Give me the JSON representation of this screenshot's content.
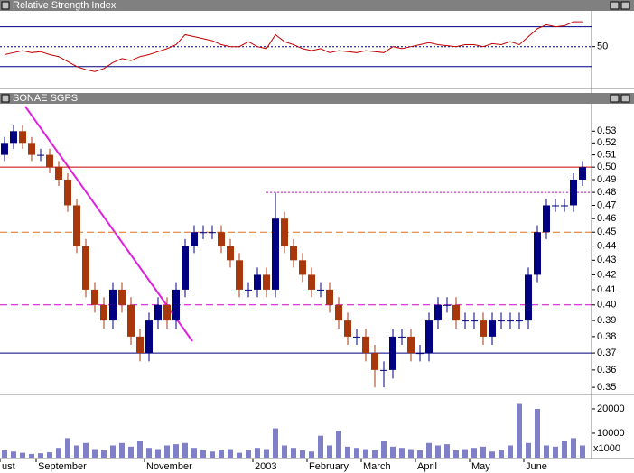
{
  "chart_data": [
    {
      "type": "line",
      "title": "Relative Strength Index",
      "color": "#c00000",
      "values": [
        42,
        44,
        46,
        44,
        45,
        42,
        40,
        35,
        30,
        27,
        25,
        28,
        34,
        38,
        36,
        40,
        42,
        45,
        48,
        52,
        62,
        60,
        58,
        56,
        52,
        50,
        50,
        55,
        50,
        48,
        62,
        55,
        52,
        48,
        46,
        48,
        44,
        46,
        45,
        44,
        46,
        45,
        44,
        50,
        48,
        50,
        52,
        54,
        52,
        51,
        50,
        52,
        52,
        50,
        53,
        52,
        55,
        52,
        60,
        68,
        72,
        70,
        71,
        75,
        75
      ],
      "ylim": [
        8,
        86
      ],
      "yticks": [
        50
      ],
      "levels": [
        {
          "value": 70,
          "color": "#000080",
          "style": "solid"
        },
        {
          "value": 50,
          "color": "#000080",
          "style": "dotted"
        },
        {
          "value": 30,
          "color": "#000080",
          "style": "solid"
        }
      ]
    },
    {
      "type": "candlestick",
      "title": "SONAE SGPS",
      "up_color": "#000080",
      "down_color": "#a8380c",
      "log_scale": true,
      "open": [
        0.51,
        0.52,
        0.53,
        0.52,
        0.51,
        0.51,
        0.5,
        0.49,
        0.47,
        0.44,
        0.41,
        0.4,
        0.39,
        0.41,
        0.4,
        0.38,
        0.37,
        0.39,
        0.4,
        0.39,
        0.41,
        0.44,
        0.45,
        0.45,
        0.45,
        0.44,
        0.43,
        0.41,
        0.41,
        0.42,
        0.41,
        0.46,
        0.44,
        0.43,
        0.42,
        0.41,
        0.41,
        0.4,
        0.39,
        0.38,
        0.38,
        0.37,
        0.36,
        0.36,
        0.38,
        0.38,
        0.37,
        0.37,
        0.39,
        0.4,
        0.4,
        0.39,
        0.39,
        0.39,
        0.38,
        0.39,
        0.39,
        0.39,
        0.39,
        0.42,
        0.45,
        0.47,
        0.47,
        0.47,
        0.49
      ],
      "high": [
        0.525,
        0.535,
        0.535,
        0.525,
        0.515,
        0.515,
        0.505,
        0.495,
        0.475,
        0.445,
        0.415,
        0.405,
        0.415,
        0.415,
        0.405,
        0.385,
        0.395,
        0.405,
        0.405,
        0.415,
        0.445,
        0.455,
        0.455,
        0.455,
        0.455,
        0.445,
        0.435,
        0.415,
        0.425,
        0.425,
        0.48,
        0.465,
        0.445,
        0.435,
        0.425,
        0.415,
        0.415,
        0.405,
        0.395,
        0.385,
        0.385,
        0.375,
        0.365,
        0.385,
        0.385,
        0.385,
        0.375,
        0.395,
        0.405,
        0.405,
        0.405,
        0.395,
        0.395,
        0.395,
        0.395,
        0.395,
        0.395,
        0.395,
        0.425,
        0.455,
        0.475,
        0.475,
        0.475,
        0.495,
        0.505
      ],
      "low": [
        0.505,
        0.515,
        0.515,
        0.505,
        0.505,
        0.495,
        0.485,
        0.465,
        0.435,
        0.405,
        0.395,
        0.385,
        0.385,
        0.395,
        0.375,
        0.365,
        0.365,
        0.385,
        0.385,
        0.385,
        0.405,
        0.435,
        0.445,
        0.445,
        0.435,
        0.425,
        0.405,
        0.405,
        0.405,
        0.405,
        0.405,
        0.435,
        0.425,
        0.415,
        0.405,
        0.405,
        0.395,
        0.385,
        0.375,
        0.375,
        0.365,
        0.35,
        0.35,
        0.355,
        0.375,
        0.365,
        0.365,
        0.365,
        0.385,
        0.395,
        0.385,
        0.385,
        0.385,
        0.375,
        0.375,
        0.385,
        0.385,
        0.385,
        0.385,
        0.415,
        0.445,
        0.465,
        0.465,
        0.465,
        0.485
      ],
      "close": [
        0.52,
        0.53,
        0.52,
        0.51,
        0.51,
        0.5,
        0.49,
        0.47,
        0.44,
        0.41,
        0.4,
        0.39,
        0.41,
        0.4,
        0.38,
        0.37,
        0.39,
        0.4,
        0.39,
        0.41,
        0.44,
        0.45,
        0.45,
        0.45,
        0.44,
        0.43,
        0.41,
        0.41,
        0.42,
        0.41,
        0.46,
        0.44,
        0.43,
        0.42,
        0.41,
        0.41,
        0.4,
        0.39,
        0.38,
        0.38,
        0.37,
        0.36,
        0.36,
        0.38,
        0.38,
        0.37,
        0.37,
        0.39,
        0.4,
        0.4,
        0.39,
        0.39,
        0.39,
        0.38,
        0.39,
        0.39,
        0.39,
        0.39,
        0.42,
        0.45,
        0.47,
        0.47,
        0.47,
        0.49,
        0.5
      ],
      "ylim": [
        0.346,
        0.554
      ],
      "yticks": [
        0.35,
        0.36,
        0.37,
        0.38,
        0.39,
        {
          "value": 0.4,
          "label": "0.40"
        },
        0.41,
        0.42,
        0.43,
        0.44,
        0.45,
        0.46,
        0.47,
        0.48,
        0.49,
        {
          "value": 0.5,
          "label": "0.50"
        },
        0.51,
        0.52,
        0.53
      ],
      "levels": [
        {
          "value": 0.5,
          "color": "#c00000",
          "style": "solid"
        },
        {
          "value": 0.48,
          "color": "#d000d0",
          "style": "dotted",
          "start_index": 29
        },
        {
          "value": 0.45,
          "color": "#e07020",
          "style": "dashed"
        },
        {
          "value": 0.4,
          "color": "#d000d0",
          "style": "dashed"
        },
        {
          "value": 0.37,
          "color": "#000080",
          "style": "solid"
        }
      ]
    },
    {
      "type": "bar",
      "color": "#8080c8",
      "axis_label": "x1000",
      "categories": [
        "ust",
        null,
        null,
        null,
        "September",
        null,
        null,
        null,
        null,
        null,
        null,
        null,
        null,
        null,
        null,
        null,
        "November",
        null,
        null,
        null,
        null,
        null,
        null,
        null,
        null,
        null,
        null,
        null,
        "2003",
        null,
        null,
        null,
        null,
        null,
        "February",
        null,
        null,
        null,
        null,
        null,
        "March",
        null,
        null,
        null,
        null,
        null,
        "April",
        null,
        null,
        null,
        null,
        null,
        "May",
        null,
        null,
        null,
        null,
        null,
        "June",
        null,
        null,
        null,
        null,
        null,
        null
      ],
      "values": [
        3000,
        2500,
        2000,
        1500,
        1800,
        2200,
        4000,
        8000,
        5000,
        6000,
        3500,
        3000,
        5000,
        6000,
        4500,
        7000,
        4000,
        3500,
        5000,
        5500,
        6000,
        4000,
        3000,
        2500,
        3000,
        3500,
        2000,
        3000,
        4000,
        3500,
        12000,
        5000,
        4000,
        3000,
        2500,
        9000,
        5000,
        11000,
        4500,
        4000,
        3500,
        3000,
        7000,
        4500,
        4000,
        3500,
        3000,
        6000,
        5000,
        5500,
        3000,
        3500,
        4000,
        4500,
        2500,
        3000,
        5000,
        22000,
        6000,
        20000,
        5000,
        4500,
        7000,
        8000,
        5000
      ],
      "ylim": [
        0,
        25900
      ],
      "yticks": [
        10000,
        20000
      ]
    }
  ]
}
